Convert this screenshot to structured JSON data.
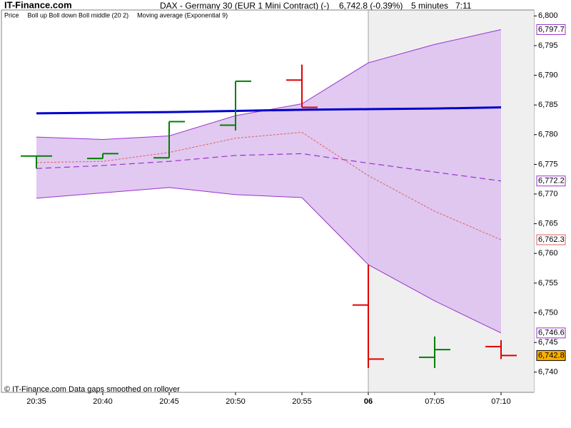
{
  "chart_data": {
    "type": "ohlc",
    "site": "IT-Finance.com",
    "title": "DAX - Germany 30 (EUR 1 Mini Contract) (-)",
    "last": "6,742.8 (-0.39%)",
    "interval": "5 minutes",
    "time": "7:11",
    "footer": "© IT-Finance.com  Data gaps smoothed on rollover",
    "legend": [
      {
        "text": "Price",
        "color": "#000000"
      },
      {
        "text": "Boll up Boll down Boll middle (20 2)",
        "color": "#9933cc"
      },
      {
        "text": "Moving average (Exponential 9)",
        "color": "#e08080"
      }
    ],
    "categories": [
      "20:35",
      "20:40",
      "20:45",
      "20:50",
      "20:55",
      "06",
      "07:05",
      "07:10"
    ],
    "session_break": "06",
    "price": {
      "up_color": "#008000",
      "down_color": "#e00000",
      "open": [
        6776.4,
        6776.0,
        6776.1,
        6781.6,
        6789.2,
        6751.3,
        6742.5,
        6744.3
      ],
      "high": [
        6776.4,
        6776.8,
        6782.2,
        6789.0,
        6791.8,
        6758.1,
        6746.0,
        6745.4
      ],
      "low": [
        6774.3,
        6776.0,
        6776.1,
        6780.7,
        6784.6,
        6740.7,
        6740.7,
        6742.2
      ],
      "close": [
        6776.4,
        6776.8,
        6782.2,
        6789.0,
        6784.6,
        6742.2,
        6743.8,
        6742.8
      ],
      "value_labels": [
        null,
        null,
        null,
        null,
        null,
        null,
        null,
        "6,742.8"
      ]
    },
    "series": [
      {
        "color": "#9933cc",
        "style": "solid",
        "values": [
          6779.6,
          6779.2,
          6779.8,
          6783.2,
          6785.2,
          6792.1,
          6795.2,
          6797.7
        ],
        "value_labels": [
          null,
          null,
          null,
          null,
          null,
          null,
          null,
          "6,797.7"
        ]
      },
      {
        "color": "#9933cc",
        "style": "solid",
        "values": [
          6769.3,
          6770.2,
          6771.1,
          6769.9,
          6769.4,
          6758.1,
          6752.0,
          6746.6
        ],
        "value_labels": [
          null,
          null,
          null,
          null,
          null,
          null,
          null,
          "6,746.6"
        ]
      },
      {
        "color": "#9933cc",
        "style": "dashed",
        "values": [
          6774.3,
          6774.8,
          6775.5,
          6776.5,
          6776.8,
          6775.2,
          6773.7,
          6772.2
        ],
        "value_labels": [
          null,
          null,
          null,
          null,
          null,
          null,
          null,
          "6,772.2"
        ]
      },
      {
        "color": "#e06060",
        "style": "dotted",
        "values": [
          6775.3,
          6775.5,
          6777.0,
          6779.4,
          6780.4,
          6773.1,
          6767.1,
          6762.3
        ],
        "value_labels": [
          null,
          null,
          null,
          null,
          null,
          null,
          null,
          "6,762.3"
        ]
      },
      {
        "color": "#0000cc",
        "style": "thick",
        "values": [
          6783.6,
          6783.7,
          6783.8,
          6784.0,
          6784.2,
          6784.3,
          6784.4,
          6784.6
        ]
      }
    ],
    "band_fill": "#dcc0ee",
    "ylim": [
      6736.6,
      6801
    ],
    "yticks": [
      {
        "value": 6740,
        "label": "6,740"
      },
      {
        "value": 6745,
        "label": "6,745"
      },
      {
        "value": 6750,
        "label": "6,750"
      },
      {
        "value": 6755,
        "label": "6,755"
      },
      {
        "value": 6760,
        "label": "6,760"
      },
      {
        "value": 6765,
        "label": "6,765"
      },
      {
        "value": 6770,
        "label": "6,770"
      },
      {
        "value": 6775,
        "label": "6,775"
      },
      {
        "value": 6780,
        "label": "6,780"
      },
      {
        "value": 6785,
        "label": "6,785"
      },
      {
        "value": 6790,
        "label": "6,790"
      },
      {
        "value": 6795,
        "label": "6,795"
      },
      {
        "value": 6800,
        "label": "6,800"
      }
    ]
  }
}
